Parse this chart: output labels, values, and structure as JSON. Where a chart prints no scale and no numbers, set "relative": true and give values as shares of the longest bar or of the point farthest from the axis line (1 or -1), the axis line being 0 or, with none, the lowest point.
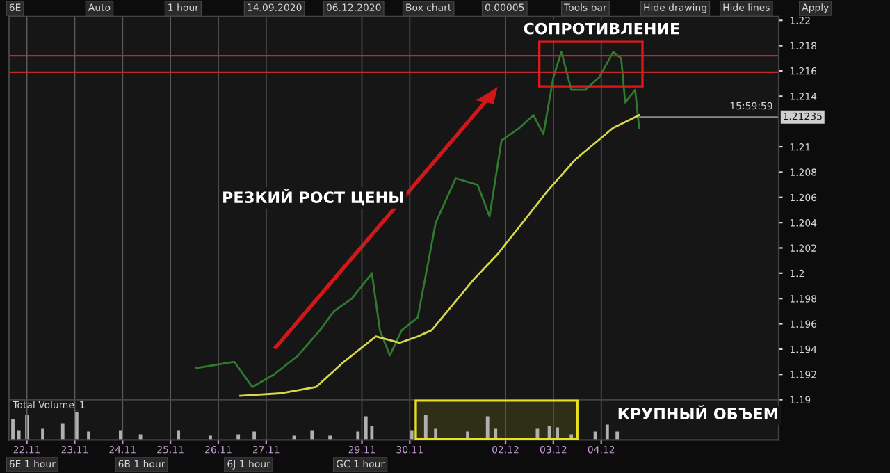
{
  "chart_data": [
    {
      "type": "other",
      "annotations": [
        "6E",
        "Auto",
        "1 hour",
        "14.09.2020",
        "06.12.2020",
        "Box chart",
        "0.00005",
        "Tools bar",
        "Hide drawing",
        "Hide lines",
        "Apply"
      ]
    },
    {
      "type": "line",
      "tick_labels": "y",
      "grid": "x",
      "annotations": [
        "РЕЗКИЙ РОСТ ЦЕНЫ",
        "СОПРОТИВЛЕНИЕ",
        "15:59:59"
      ],
      "xlim": [
        "2020-11-21T15:00",
        "2020-12-07T17:00"
      ],
      "xticks": [
        {
          "value": "2020-11-22",
          "label": null
        },
        {
          "value": "2020-11-23",
          "label": null
        },
        {
          "value": "2020-11-24",
          "label": null
        },
        {
          "value": "2020-11-25",
          "label": null
        },
        {
          "value": "2020-11-26",
          "label": null
        },
        {
          "value": "2020-11-27",
          "label": null
        },
        {
          "value": "2020-11-29",
          "label": null
        },
        {
          "value": "2020-11-30",
          "label": null
        },
        {
          "value": "2020-12-02",
          "label": null
        },
        {
          "value": "2020-12-03",
          "label": null
        },
        {
          "value": "2020-12-04",
          "label": null
        }
      ],
      "ylim": [
        1.19,
        1.2203
      ],
      "yticks": [
        1.19,
        1.192,
        1.194,
        1.196,
        1.198,
        {
          "value": 1.2,
          "label": "1.2"
        },
        1.202,
        1.204,
        1.206,
        1.208,
        {
          "value": 1.21,
          "label": "1.21"
        },
        1.214,
        1.216,
        1.218,
        {
          "value": 1.22,
          "label": "1.22"
        }
      ],
      "ref_lines": [
        {
          "axis": "y",
          "value": 1.2172,
          "color": "#c0282a"
        },
        {
          "axis": "y",
          "value": 1.2159,
          "color": "#c0282a"
        },
        {
          "axis": "y",
          "value": 1.21235,
          "label": "1.21235",
          "color": "#8a8a8a"
        }
      ],
      "series": [
        {
          "color": "#2f7a2f",
          "x": [
            "2020-11-25T13:00",
            "2020-11-26T08:00",
            "2020-11-26T17:00",
            "2020-11-27T04:00",
            "2020-11-27T16:00",
            "2020-11-28T03:00",
            "2020-11-28T10:00",
            "2020-11-28T19:00",
            "2020-11-29T05:00",
            "2020-11-29T09:00",
            "2020-11-29T14:00",
            "2020-11-29T20:00",
            "2020-11-30T04:00",
            "2020-11-30T13:00",
            "2020-11-30T23:00",
            "2020-12-01T10:00",
            "2020-12-01T16:00",
            "2020-12-01T22:00",
            "2020-12-02T07:00",
            "2020-12-02T14:00",
            "2020-12-02T19:00",
            "2020-12-03T00:00",
            "2020-12-03T04:00",
            "2020-12-03T09:00",
            "2020-12-03T16:00",
            "2020-12-03T23:00",
            "2020-12-04T06:00",
            "2020-12-04T10:00",
            "2020-12-04T12:00",
            "2020-12-04T17:00",
            "2020-12-04T19:00"
          ],
          "values": [
            1.1925,
            1.193,
            1.191,
            1.192,
            1.1935,
            1.1955,
            1.197,
            1.198,
            1.2,
            1.1955,
            1.1935,
            1.1955,
            1.1965,
            1.204,
            1.2075,
            1.207,
            1.2045,
            1.2105,
            1.2115,
            1.2125,
            1.211,
            1.2155,
            1.2175,
            1.2145,
            1.2145,
            1.2155,
            1.2175,
            1.217,
            1.2135,
            1.2145,
            1.2115
          ]
        },
        {
          "color": "#d8d84a",
          "x": [
            "2020-11-26T11:00",
            "2020-11-27T07:00",
            "2020-11-28T01:00",
            "2020-11-28T15:00",
            "2020-11-29T07:00",
            "2020-11-29T19:00",
            "2020-11-30T04:00",
            "2020-11-30T11:00",
            "2020-12-01T08:00",
            "2020-12-01T20:00",
            "2020-12-02T21:00",
            "2020-12-03T11:00",
            "2020-12-04T06:00",
            "2020-12-04T19:00"
          ],
          "values": [
            1.1903,
            1.1905,
            1.191,
            1.193,
            1.195,
            1.1945,
            1.195,
            1.1955,
            1.1995,
            1.2015,
            1.2065,
            1.209,
            1.2115,
            1.2125
          ]
        }
      ]
    },
    {
      "type": "bar",
      "relative": true,
      "title": "Total Volume_1",
      "tick_labels": "x",
      "grid": "x",
      "annotations": [
        "КРУПНЫЙ ОБЪЕМ"
      ],
      "bands": [
        {
          "axis": "x",
          "from": "2020-11-30T03:00",
          "to": "2020-12-03T12:00",
          "color": "#e8e020"
        }
      ],
      "xlim": [
        "2020-11-21T15:00",
        "2020-12-07T17:00"
      ],
      "xticks": [
        {
          "value": "2020-11-22",
          "label": "22.11"
        },
        {
          "value": "2020-11-23",
          "label": "23.11"
        },
        {
          "value": "2020-11-24",
          "label": "24.11"
        },
        {
          "value": "2020-11-25",
          "label": "25.11"
        },
        {
          "value": "2020-11-26",
          "label": "26.11"
        },
        {
          "value": "2020-11-27",
          "label": "27.11"
        },
        {
          "value": "2020-11-29",
          "label": "29.11"
        },
        {
          "value": "2020-11-30",
          "label": "30.11"
        },
        {
          "value": "2020-12-02",
          "label": "02.12"
        },
        {
          "value": "2020-12-03",
          "label": "03.12"
        },
        {
          "value": "2020-12-04",
          "label": "04.12"
        }
      ],
      "x": [
        "2020-11-21T17:00",
        "2020-11-21T20:00",
        "2020-11-22T00:00",
        "2020-11-22T08:00",
        "2020-11-22T18:00",
        "2020-11-23T01:00",
        "2020-11-23T07:00",
        "2020-11-23T23:00",
        "2020-11-24T09:00",
        "2020-11-25T04:00",
        "2020-11-25T20:00",
        "2020-11-26T10:00",
        "2020-11-26T18:00",
        "2020-11-27T14:00",
        "2020-11-27T23:00",
        "2020-11-28T08:00",
        "2020-11-28T22:00",
        "2020-11-29T02:00",
        "2020-11-29T05:00",
        "2020-11-30T01:00",
        "2020-11-30T08:00",
        "2020-11-30T13:00",
        "2020-12-01T05:00",
        "2020-12-01T15:00",
        "2020-12-01T19:00",
        "2020-12-02T16:00",
        "2020-12-02T22:00",
        "2020-12-03T02:00",
        "2020-12-03T09:00",
        "2020-12-03T21:00",
        "2020-12-04T03:00",
        "2020-12-04T08:00"
      ],
      "values": [
        0.75,
        0.35,
        0.9,
        0.4,
        0.6,
        1.0,
        0.3,
        0.35,
        0.2,
        0.35,
        0.15,
        0.2,
        0.3,
        0.15,
        0.35,
        0.15,
        0.3,
        0.85,
        0.5,
        0.35,
        0.9,
        0.4,
        0.3,
        0.85,
        0.4,
        0.4,
        0.5,
        0.45,
        0.2,
        0.3,
        0.55,
        0.3
      ],
      "color": "#b0b0b0"
    },
    {
      "type": "other",
      "annotations": [
        "6E 1 hour",
        "6B 1 hour",
        "6J 1 hour",
        "GC 1 hour"
      ]
    }
  ]
}
